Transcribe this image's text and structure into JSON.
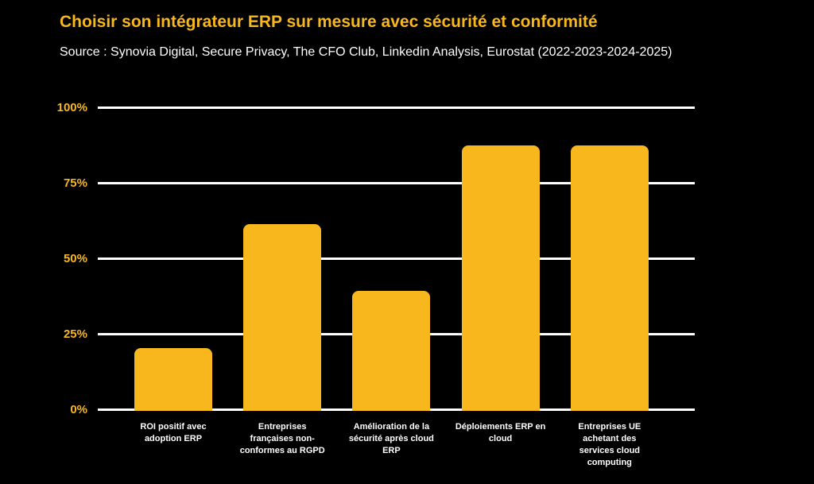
{
  "header": {
    "title": "Choisir son intégrateur ERP sur mesure avec sécurité et conformité",
    "source": "Source : Synovia Digital, Secure Privacy, The CFO Club, Linkedin Analysis, Eurostat (2022-2023-2024-2025)"
  },
  "colors": {
    "background": "#000000",
    "accent_amber": "#F8B71D",
    "gridline_white": "#FFFFFF",
    "category_text_white": "#FFFFFF"
  },
  "chart_data": {
    "type": "bar",
    "title": "Choisir son intégrateur ERP sur mesure avec sécurité et conformité",
    "subtitle": "Source : Synovia Digital, Secure Privacy, The CFO Club, Linkedin Analysis, Eurostat (2022-2023-2024-2025)",
    "categories": [
      "ROI positif avec\nadoption ERP",
      "Entreprises\nfrançaises non-\nconformes au RGPD",
      "Amélioration de la\nsécurité après cloud\nERP",
      "Déploiements ERP en\ncloud",
      "Entreprises UE\nachetant des\nservices cloud\ncomputing"
    ],
    "values": [
      20,
      61,
      39,
      87,
      87
    ],
    "unit": "%",
    "xlabel": "",
    "ylabel": "",
    "ylim": [
      0,
      100
    ],
    "yticks": [
      {
        "value": 0,
        "label": "0%"
      },
      {
        "value": 25,
        "label": "25%"
      },
      {
        "value": 50,
        "label": "50%"
      },
      {
        "value": 75,
        "label": "75%"
      },
      {
        "value": 100,
        "label": "100%"
      }
    ],
    "grid": true,
    "legend": false,
    "bar_color": "#F8B71D"
  }
}
